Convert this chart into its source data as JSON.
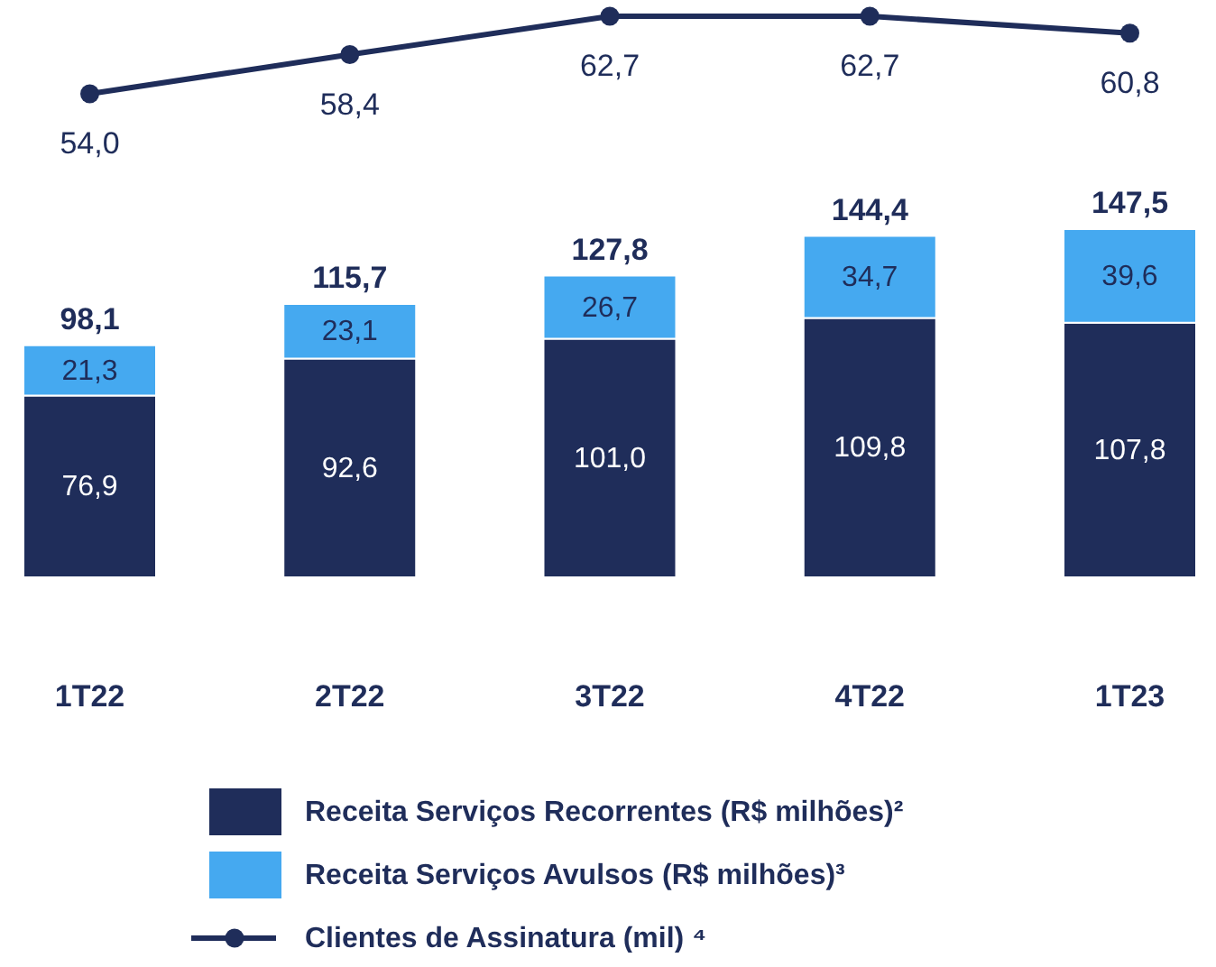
{
  "chart_data": [
    {
      "type": "line",
      "categories": [
        null,
        null,
        null,
        null,
        null
      ],
      "tick_labels": false,
      "grid": false,
      "legend": "bottom",
      "marker": "circle",
      "series": [
        {
          "name": "Clientes de Assinatura (mil) ⁴",
          "color": "#1f2d5a",
          "values": [
            54.0,
            58.4,
            62.7,
            62.7,
            60.8
          ],
          "value_labels": [
            "54,0",
            "58,4",
            "62,7",
            "62,7",
            "60,8"
          ]
        }
      ]
    },
    {
      "type": "bar",
      "stacked": true,
      "categories": [
        "1T22",
        "2T22",
        "3T22",
        "4T22",
        "1T23"
      ],
      "tick_labels": "x",
      "grid": false,
      "legend": "bottom",
      "series": [
        {
          "name": "Receita Serviços Recorrentes (R$ milhões)²",
          "color": "#1f2d5a",
          "values": [
            76.9,
            92.6,
            101.0,
            109.8,
            107.8
          ],
          "value_labels": [
            "76,9",
            "92,6",
            "101,0",
            "109,8",
            "107,8"
          ]
        },
        {
          "name": "Receita Serviços Avulsos (R$ milhões)³",
          "color": "#45a9f0",
          "values": [
            21.3,
            23.1,
            26.7,
            34.7,
            39.6
          ],
          "value_labels": [
            "21,3",
            "23,1",
            "26,7",
            "34,7",
            "39,6"
          ]
        }
      ],
      "totals": [
        "98,1",
        "115,7",
        "127,8",
        "144,4",
        "147,5"
      ]
    }
  ]
}
